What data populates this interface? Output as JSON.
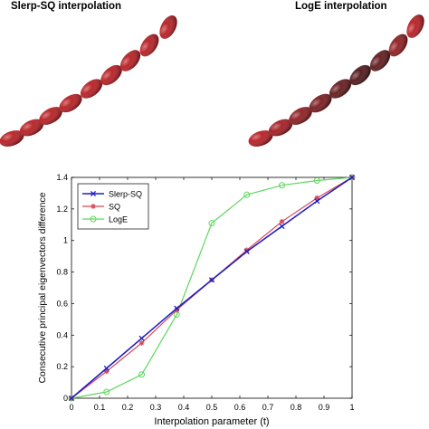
{
  "panels": {
    "left_title": "Slerp-SQ interpolation",
    "right_title": "LogE interpolation"
  },
  "chart_data": {
    "type": "line",
    "title": "",
    "xlabel": "Interpolation parameter (t)",
    "ylabel": "Consecutive principal eigenvectors difference",
    "xlim": [
      0,
      1
    ],
    "ylim": [
      0,
      1.4
    ],
    "xticks": [
      "0",
      "0.1",
      "0.2",
      "0.3",
      "0.4",
      "0.5",
      "0.6",
      "0.7",
      "0.8",
      "0.9",
      "1"
    ],
    "yticks": [
      "0",
      "0.2",
      "0.4",
      "0.6",
      "0.8",
      "1",
      "1.2",
      "1.4"
    ],
    "grid": false,
    "legend_position": "top-left",
    "series": [
      {
        "name": "Slerp-SQ",
        "color": "#1f1fbf",
        "marker": "x",
        "x": [
          0,
          0.125,
          0.25,
          0.375,
          0.5,
          0.625,
          0.75,
          0.875,
          1
        ],
        "values": [
          0,
          0.19,
          0.38,
          0.57,
          0.75,
          0.93,
          1.09,
          1.25,
          1.4
        ]
      },
      {
        "name": "SQ",
        "color": "#d9475a",
        "marker": "*",
        "x": [
          0,
          0.125,
          0.25,
          0.375,
          0.5,
          0.625,
          0.75,
          0.875,
          1
        ],
        "values": [
          0,
          0.17,
          0.35,
          0.56,
          0.75,
          0.94,
          1.12,
          1.27,
          1.4
        ]
      },
      {
        "name": "LogE",
        "color": "#5fd65f",
        "marker": "o",
        "x": [
          0,
          0.125,
          0.25,
          0.375,
          0.5,
          0.625,
          0.75,
          0.875,
          1
        ],
        "values": [
          0,
          0.04,
          0.15,
          0.53,
          1.11,
          1.29,
          1.35,
          1.38,
          1.4
        ]
      }
    ]
  },
  "illustrations": {
    "left_ellipsoid_color": "#b5161b",
    "right_ellipsoid_colors": [
      "#b5161b",
      "#a0151b",
      "#8a1519",
      "#741317",
      "#5e1214",
      "#4a0f11",
      "#5a1214",
      "#8c1519",
      "#b5161b"
    ]
  }
}
